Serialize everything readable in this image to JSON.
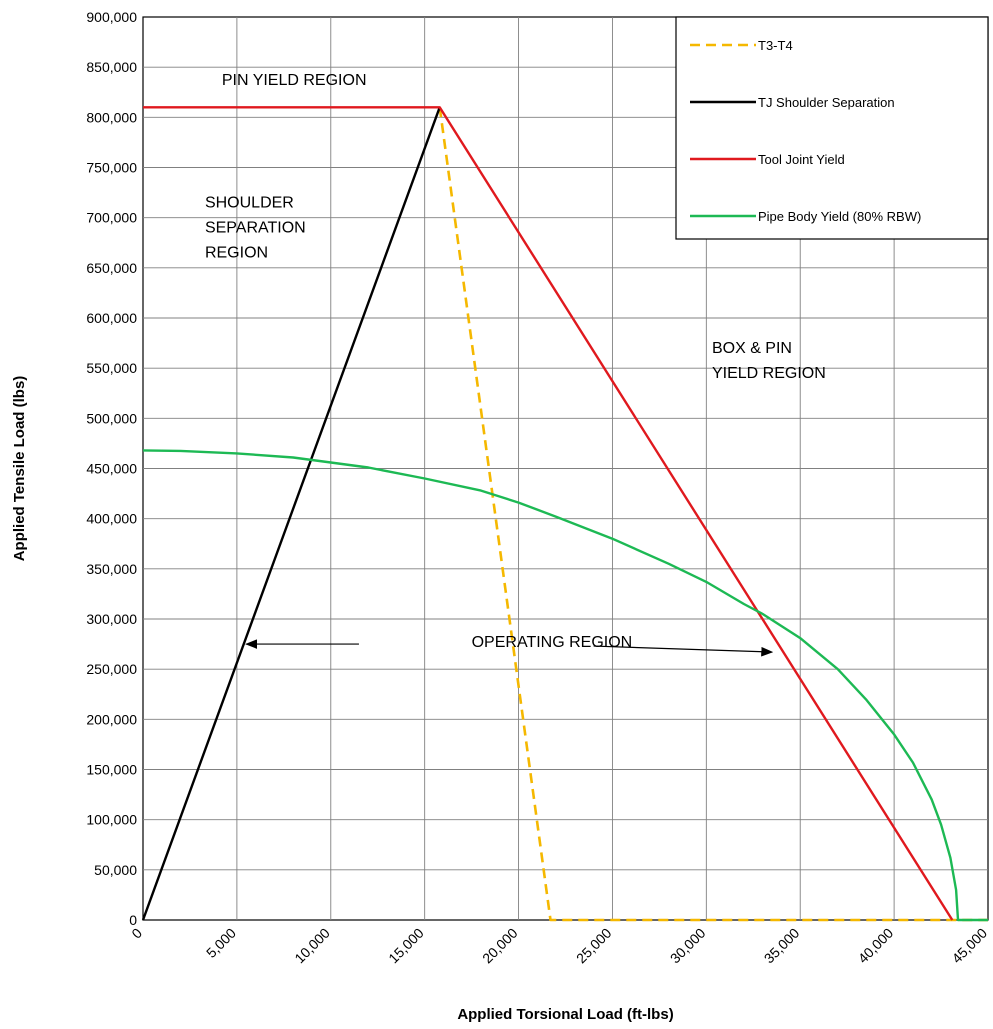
{
  "chart_data": {
    "type": "line",
    "xlabel": "Applied Torsional Load (ft-lbs)",
    "ylabel": "Applied Tensile Load (lbs)",
    "xlim": [
      0,
      45000
    ],
    "ylim": [
      0,
      900000
    ],
    "x_ticks": [
      0,
      5000,
      10000,
      15000,
      20000,
      25000,
      30000,
      35000,
      40000,
      45000
    ],
    "y_ticks": [
      0,
      50000,
      100000,
      150000,
      200000,
      250000,
      300000,
      350000,
      400000,
      450000,
      500000,
      550000,
      600000,
      650000,
      700000,
      750000,
      800000,
      850000,
      900000
    ],
    "x_tick_labels": [
      "0",
      "5,000",
      "10,000",
      "15,000",
      "20,000",
      "25,000",
      "30,000",
      "35,000",
      "40,000",
      "45,000"
    ],
    "y_tick_labels": [
      "0",
      "50,000",
      "100,000",
      "150,000",
      "200,000",
      "250,000",
      "300,000",
      "350,000",
      "400,000",
      "450,000",
      "500,000",
      "550,000",
      "600,000",
      "650,000",
      "700,000",
      "750,000",
      "800,000",
      "850,000",
      "900,000"
    ],
    "grid": true,
    "legend_position": "top-right",
    "series": [
      {
        "name": "T3-T4",
        "color": "#F5B800",
        "dash": "dashed",
        "points": [
          [
            15800,
            810000
          ],
          [
            21700,
            0
          ],
          [
            45000,
            0
          ]
        ]
      },
      {
        "name": "TJ Shoulder Separation",
        "color": "#000000",
        "dash": "solid",
        "points": [
          [
            0,
            0
          ],
          [
            15800,
            810000
          ]
        ]
      },
      {
        "name": "Tool Joint Yield",
        "color": "#E0191E",
        "dash": "solid",
        "points": [
          [
            0,
            810000
          ],
          [
            15800,
            810000
          ],
          [
            43100,
            0
          ]
        ]
      },
      {
        "name": "Pipe Body Yield (80% RBW)",
        "color": "#1DB954",
        "dash": "solid",
        "points": [
          [
            0,
            468000
          ],
          [
            2000,
            467500
          ],
          [
            5000,
            465000
          ],
          [
            8000,
            461000
          ],
          [
            10000,
            456000
          ],
          [
            12000,
            451000
          ],
          [
            15000,
            440000
          ],
          [
            18000,
            428000
          ],
          [
            20000,
            416000
          ],
          [
            22000,
            402000
          ],
          [
            25000,
            380000
          ],
          [
            28000,
            355000
          ],
          [
            30000,
            337000
          ],
          [
            32000,
            315000
          ],
          [
            33000,
            305000
          ],
          [
            35000,
            281000
          ],
          [
            37000,
            250000
          ],
          [
            38500,
            220000
          ],
          [
            40000,
            185000
          ],
          [
            41000,
            157000
          ],
          [
            42000,
            120000
          ],
          [
            42500,
            95000
          ],
          [
            43000,
            62000
          ],
          [
            43300,
            30000
          ],
          [
            43400,
            0
          ],
          [
            45000,
            0
          ]
        ]
      }
    ],
    "annotations": [
      {
        "id": "pin-yield-region",
        "lines": [
          "PIN YIELD REGION"
        ],
        "x": 4200,
        "y": 832000
      },
      {
        "id": "shoulder-separation-region",
        "lines": [
          "SHOULDER",
          "SEPARATION",
          "REGION"
        ],
        "x": 3300,
        "y": 710000
      },
      {
        "id": "box-pin-yield-region",
        "lines": [
          "BOX & PIN",
          "YIELD REGION"
        ],
        "x": 30300,
        "y": 565000
      },
      {
        "id": "operating-region",
        "lines": [
          "OPERATING  REGION"
        ],
        "x": 17500,
        "y": 272000
      }
    ],
    "operating_region_arrow": {
      "y": 275000,
      "left_tip_x": 5500,
      "left_tail_x": 11500,
      "right_tail_x": 24000,
      "right_tip_x": 33500
    }
  }
}
